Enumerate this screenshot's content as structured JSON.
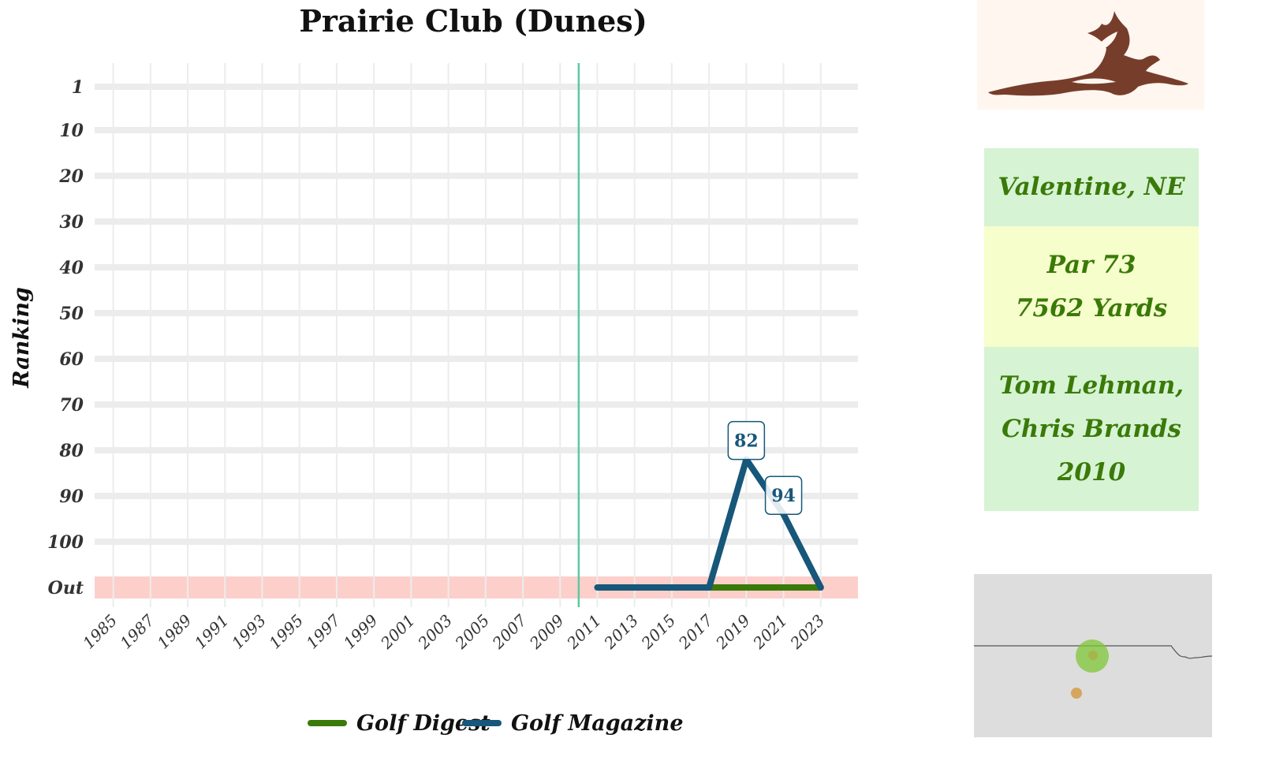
{
  "chart_data": {
    "type": "line",
    "title": "Prairie Club (Dunes)",
    "xlabel": "",
    "ylabel": "Ranking",
    "x_ticks": [
      "1985",
      "1987",
      "1989",
      "1991",
      "1993",
      "1995",
      "1997",
      "1999",
      "2001",
      "2003",
      "2005",
      "2007",
      "2009",
      "2011",
      "2013",
      "2015",
      "2017",
      "2019",
      "2021",
      "2023"
    ],
    "xlim": [
      1984,
      2025
    ],
    "y_ticks": [
      "1",
      "10",
      "20",
      "30",
      "40",
      "50",
      "60",
      "70",
      "80",
      "90",
      "100",
      "Out"
    ],
    "y_reversed": true,
    "out_band_color": "#fccfcb",
    "grid": true,
    "reference_line": {
      "x": 2010,
      "color": "#5cc9a0"
    },
    "series": [
      {
        "name": "Golf Digest",
        "color": "#3a7a08",
        "points": [
          {
            "x": 2017,
            "y": "Out"
          },
          {
            "x": 2023,
            "y": "Out"
          }
        ]
      },
      {
        "name": "Golf Magazine",
        "color": "#16577a",
        "points": [
          {
            "x": 2011,
            "y": "Out"
          },
          {
            "x": 2013,
            "y": "Out"
          },
          {
            "x": 2015,
            "y": "Out"
          },
          {
            "x": 2017,
            "y": "Out"
          },
          {
            "x": 2019,
            "y": 82
          },
          {
            "x": 2021,
            "y": 94
          },
          {
            "x": 2023,
            "y": "Out"
          }
        ]
      }
    ],
    "data_labels": [
      {
        "x": 2019,
        "y": 82,
        "text": "82",
        "series": "Golf Magazine"
      },
      {
        "x": 2021,
        "y": 94,
        "text": "94",
        "series": "Golf Magazine"
      }
    ],
    "legend": {
      "position": "bottom",
      "entries": [
        "Golf Digest",
        "Golf Magazine"
      ]
    }
  },
  "course_info": {
    "location": "Valentine, NE",
    "par": "Par 73",
    "yardage": "7562 Yards",
    "architects_line1": "Tom Lehman,",
    "architects_line2": "Chris Brands",
    "year": "2010"
  },
  "logo": {
    "icon": "flying-bird-icon",
    "color": "#6b2c1a"
  },
  "map": {
    "icon": "state-outline-map",
    "background": "#dddddd",
    "markers": [
      {
        "name": "course-location",
        "color": "#7fc535"
      },
      {
        "name": "other-location",
        "color": "#d4a050"
      }
    ]
  }
}
